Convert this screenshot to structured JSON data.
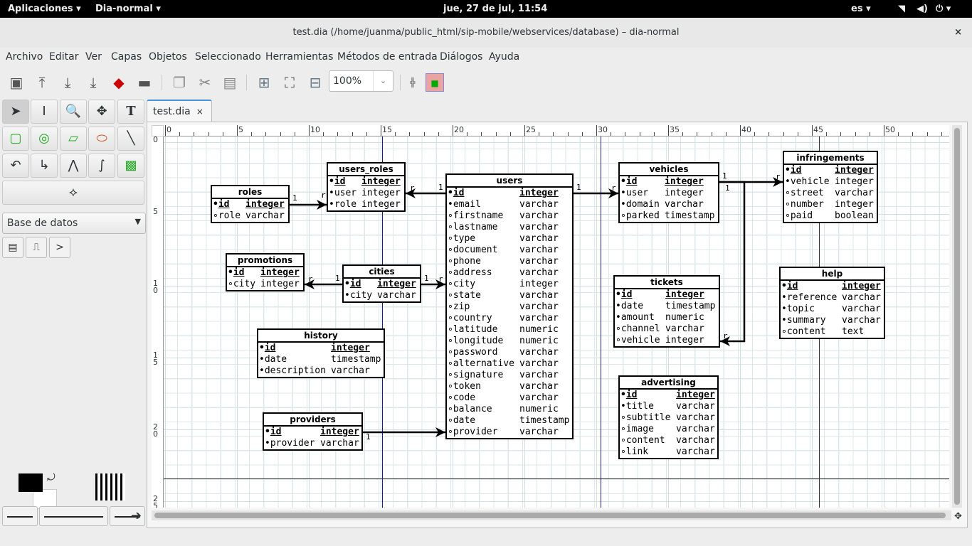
{
  "topbar": {
    "apps": "Aplicaciones ▾",
    "app": "Dia-normal ▾",
    "clock": "jue, 27 de jul, 11:54",
    "lang": "es ▾"
  },
  "window": {
    "title": "test.dia (/home/juanma/public_html/sip-mobile/webservices/database) – dia-normal",
    "close": "×"
  },
  "menu": [
    "Archivo",
    "Editar",
    "Ver",
    "Capas",
    "Objetos",
    "Seleccionado",
    "Herramientas",
    "Métodos de entrada",
    "Diálogos",
    "Ayuda"
  ],
  "toolbar": {
    "zoom": "100%",
    "icons": [
      "new-file-icon",
      "open-icon",
      "save-icon",
      "save-as-icon",
      "export-icon",
      "print-icon",
      "copy-icon",
      "cut-icon",
      "paste-icon",
      "zoom-in-icon",
      "zoom-fit-icon",
      "zoom-out-icon",
      "snap-grid-icon",
      "connection-points-icon"
    ]
  },
  "sheet": {
    "selected": "Base de datos"
  },
  "tab": {
    "label": "test.dia",
    "close": "×"
  },
  "ruler": {
    "h": [
      "0",
      "5",
      "10",
      "15",
      "20",
      "25",
      "30",
      "35",
      "40",
      "45",
      "50"
    ],
    "v": [
      "0",
      "5",
      "10",
      "15",
      "20",
      "25"
    ]
  },
  "colors": {
    "foreground": "#000000",
    "background": "#ffffff"
  },
  "tables": [
    {
      "name": "roles",
      "rows": [
        [
          "•",
          "id",
          "integer",
          1
        ],
        [
          "∘",
          "role",
          "varchar",
          0
        ]
      ]
    },
    {
      "name": "users_roles",
      "rows": [
        [
          "•",
          "id",
          "integer",
          1
        ],
        [
          "•",
          "user",
          "integer",
          0
        ],
        [
          "•",
          "role",
          "integer",
          0
        ]
      ]
    },
    {
      "name": "users",
      "rows": [
        [
          "•",
          "id",
          "integer",
          1
        ],
        [
          "•",
          "email",
          "varchar",
          0
        ],
        [
          "∘",
          "firstname",
          "varchar",
          0
        ],
        [
          "∘",
          "lastname",
          "varchar",
          0
        ],
        [
          "∘",
          "type",
          "varchar",
          0
        ],
        [
          "∘",
          "document",
          "varchar",
          0
        ],
        [
          "∘",
          "phone",
          "varchar",
          0
        ],
        [
          "∘",
          "address",
          "varchar",
          0
        ],
        [
          "∘",
          "city",
          "integer",
          0
        ],
        [
          "∘",
          "state",
          "varchar",
          0
        ],
        [
          "∘",
          "zip",
          "varchar",
          0
        ],
        [
          "∘",
          "country",
          "varchar",
          0
        ],
        [
          "∘",
          "latitude",
          "numeric",
          0
        ],
        [
          "∘",
          "longitude",
          "numeric",
          0
        ],
        [
          "∘",
          "password",
          "varchar",
          0
        ],
        [
          "∘",
          "alternative",
          "varchar",
          0
        ],
        [
          "∘",
          "signature",
          "varchar",
          0
        ],
        [
          "∘",
          "token",
          "varchar",
          0
        ],
        [
          "∘",
          "code",
          "varchar",
          0
        ],
        [
          "∘",
          "balance",
          "numeric",
          0
        ],
        [
          "∘",
          "date",
          "timestamp",
          0
        ],
        [
          "∘",
          "provider",
          "varchar",
          0
        ]
      ]
    },
    {
      "name": "promotions",
      "rows": [
        [
          "•",
          "id",
          "integer",
          1
        ],
        [
          "∘",
          "city",
          "integer",
          0
        ]
      ]
    },
    {
      "name": "cities",
      "rows": [
        [
          "•",
          "id",
          "integer",
          1
        ],
        [
          "•",
          "city",
          "varchar",
          0
        ]
      ]
    },
    {
      "name": "history",
      "rows": [
        [
          "•",
          "id",
          "integer",
          1
        ],
        [
          "•",
          "date",
          "timestamp",
          0
        ],
        [
          "•",
          "description",
          "varchar",
          0
        ]
      ]
    },
    {
      "name": "providers",
      "rows": [
        [
          "•",
          "id",
          "integer",
          1
        ],
        [
          "•",
          "provider",
          "varchar",
          0
        ]
      ]
    },
    {
      "name": "vehicles",
      "rows": [
        [
          "•",
          "id",
          "integer",
          1
        ],
        [
          "•",
          "user",
          "integer",
          0
        ],
        [
          "•",
          "domain",
          "varchar",
          0
        ],
        [
          "∘",
          "parked",
          "timestamp",
          0
        ]
      ]
    },
    {
      "name": "infringements",
      "rows": [
        [
          "•",
          "id",
          "integer",
          1
        ],
        [
          "•",
          "vehicle",
          "integer",
          0
        ],
        [
          "∘",
          "street",
          "varchar",
          0
        ],
        [
          "∘",
          "number",
          "integer",
          0
        ],
        [
          "∘",
          "paid",
          "boolean",
          0
        ]
      ]
    },
    {
      "name": "tickets",
      "rows": [
        [
          "•",
          "id",
          "integer",
          1
        ],
        [
          "•",
          "date",
          "timestamp",
          0
        ],
        [
          "•",
          "amount",
          "numeric",
          0
        ],
        [
          "∘",
          "channel",
          "varchar",
          0
        ],
        [
          "∘",
          "vehicle",
          "integer",
          0
        ]
      ]
    },
    {
      "name": "help",
      "rows": [
        [
          "•",
          "id",
          "integer",
          1
        ],
        [
          "•",
          "reference",
          "varchar",
          0
        ],
        [
          "•",
          "topic",
          "varchar",
          0
        ],
        [
          "•",
          "summary",
          "varchar",
          0
        ],
        [
          "∘",
          "content",
          "text",
          0
        ]
      ]
    },
    {
      "name": "advertising",
      "rows": [
        [
          "•",
          "id",
          "integer",
          1
        ],
        [
          "•",
          "title",
          "varchar",
          0
        ],
        [
          "∘",
          "subtitle",
          "varchar",
          0
        ],
        [
          "∘",
          "image",
          "varchar",
          0
        ],
        [
          "∘",
          "content",
          "varchar",
          0
        ],
        [
          "∘",
          "link",
          "varchar",
          0
        ]
      ]
    }
  ],
  "relations": [
    {
      "from": "roles",
      "to": "users_roles",
      "from_label": "1",
      "to_label": "r"
    },
    {
      "from": "users",
      "to": "users_roles",
      "from_label": "1",
      "to_label": "r"
    },
    {
      "from": "users",
      "to": "vehicles",
      "from_label": "1",
      "to_label": "r"
    },
    {
      "from": "cities",
      "to": "promotions",
      "from_label": "1",
      "to_label": "r"
    },
    {
      "from": "cities",
      "to": "users",
      "from_label": "1",
      "to_label": "r"
    },
    {
      "from": "providers",
      "to": "users",
      "from_label": "1",
      "to_label": "r"
    },
    {
      "from": "vehicles",
      "to": "infringements",
      "from_label": "1",
      "to_label": "r"
    },
    {
      "from": "vehicles",
      "to": "tickets",
      "from_label": "1",
      "to_label": "r"
    }
  ]
}
